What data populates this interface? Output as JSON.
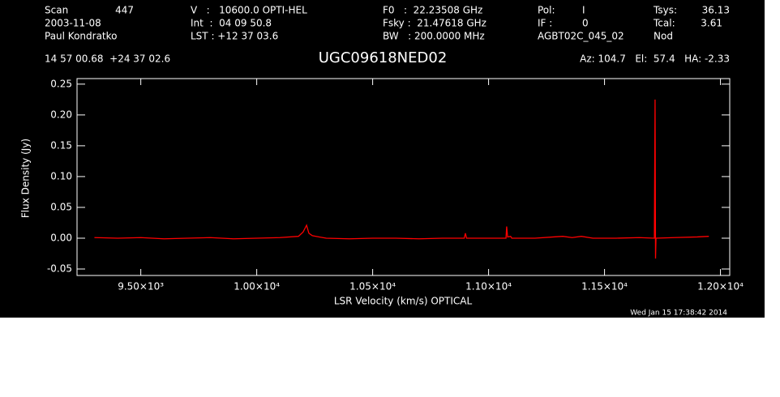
{
  "chart_data": {
    "type": "line",
    "title": "UGC09618NED02",
    "header": [
      "Scan",
      "447",
      "V   :   10600.0 OPTI-HEL",
      "F0   :  22.23508 GHz",
      "Pol:",
      "I",
      "Tsys:",
      "36.13",
      "2003-11-08",
      "Int  :  04 09 50.8",
      "Fsky :  21.47618 GHz",
      "IF :",
      "0",
      "Tcal:",
      "3.61",
      "Paul Kondratko",
      "LST : +12 37 03.6",
      "BW   : 200.0000 MHz",
      "AGBT02C_045_02",
      "Nod",
      "14 57 00.68  +24 37 02.6",
      "Az: 104.7   El:  57.4   HA: -2.33"
    ],
    "timestamp": "Wed Jan 15 17:38:42 2014",
    "x_label": "LSR Velocity (km/s) OPTICAL",
    "y_label": "Flux Density (Jy)",
    "color": "#ff0000",
    "x": [
      9300,
      9400,
      9500,
      9600,
      9700,
      9800,
      9900,
      10000,
      10100,
      10180,
      10200,
      10215,
      10225,
      10240,
      10270,
      10300,
      10400,
      10500,
      10600,
      10700,
      10800,
      10895,
      10900,
      10905,
      11000,
      11075,
      11078,
      11082,
      11095,
      11100,
      11200,
      11280,
      11320,
      11360,
      11400,
      11450,
      11550,
      11650,
      11715,
      11718,
      11720,
      11722,
      11800,
      11900,
      11950
    ],
    "values": [
      0.001,
      0.0,
      0.001,
      -0.001,
      0.0,
      0.001,
      -0.001,
      0.0,
      0.001,
      0.003,
      0.01,
      0.021,
      0.008,
      0.004,
      0.002,
      0.0,
      -0.001,
      0.0,
      0.0,
      -0.001,
      0.0,
      0.0,
      0.008,
      0.0,
      0.0,
      0.0,
      0.019,
      0.002,
      0.003,
      0.0,
      0.0,
      0.002,
      0.003,
      0.001,
      0.003,
      0.0,
      0.0,
      0.001,
      0.0,
      0.225,
      -0.033,
      0.0,
      0.001,
      0.002,
      0.003
    ],
    "xlim": [
      9225,
      12040
    ],
    "ylim": [
      -0.0605,
      0.259
    ],
    "xticks": [
      {
        "value": 9500,
        "label": "9.50×10³"
      },
      {
        "value": 10000,
        "label": "1.00×10⁴"
      },
      {
        "value": 10500,
        "label": "1.05×10⁴"
      },
      {
        "value": 11000,
        "label": "1.10×10⁴"
      },
      {
        "value": 11500,
        "label": "1.15×10⁴"
      },
      {
        "value": 12000,
        "label": "1.20×10⁴"
      }
    ],
    "yticks": [
      -0.05,
      {
        "value": 0,
        "label": "0.00"
      },
      0.05,
      {
        "value": 0.1,
        "label": "0.10"
      },
      0.15,
      {
        "value": 0.2,
        "label": "0.20"
      },
      0.25
    ]
  }
}
